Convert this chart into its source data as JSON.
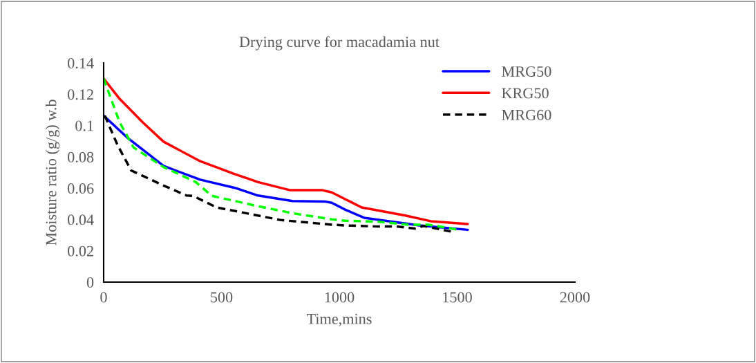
{
  "chart_data": {
    "type": "line",
    "title": "Drying curve for macadamia nut",
    "xlabel": "Time,mins",
    "ylabel": "Moisture ratio (g/g) w.b",
    "xlim": [
      0,
      2000
    ],
    "xticks": [
      0,
      500,
      1000,
      1500,
      2000
    ],
    "ylim": [
      0,
      0.14
    ],
    "yticks": [
      0,
      0.02,
      0.04,
      0.06,
      0.08,
      0.1,
      0.12,
      0.14
    ],
    "grid": false,
    "legend": "top right",
    "marker": "none",
    "series": [
      {
        "name": "MRG50",
        "color": "#0000ff",
        "line_style": "solid",
        "x": [
          0,
          98,
          254,
          410,
          557,
          655,
          801,
          938,
          968,
          1026,
          1105,
          1339,
          1545
        ],
        "values": [
          0.1063,
          0.0926,
          0.0742,
          0.0654,
          0.0602,
          0.0553,
          0.0518,
          0.0515,
          0.0507,
          0.0462,
          0.0411,
          0.0362,
          0.0334
        ]
      },
      {
        "name": "KRG50",
        "color": "#ff0000",
        "line_style": "solid",
        "x": [
          0,
          68,
          166,
          254,
          410,
          557,
          655,
          792,
          929,
          968,
          1026,
          1095,
          1281,
          1388,
          1545
        ],
        "values": [
          0.13,
          0.117,
          0.102,
          0.0897,
          0.0772,
          0.069,
          0.0639,
          0.0587,
          0.0587,
          0.0573,
          0.0529,
          0.0477,
          0.0425,
          0.0389,
          0.0371
        ]
      },
      {
        "name": "MRG60",
        "color": "#000000",
        "line_style": "dashed",
        "x": [
          5,
          59,
          117,
          254,
          352,
          381,
          479,
          753,
          968,
          1026,
          1163,
          1241,
          1320,
          1359,
          1476
        ],
        "values": [
          0.1063,
          0.0875,
          0.0713,
          0.0617,
          0.0553,
          0.055,
          0.0477,
          0.0396,
          0.0367,
          0.0362,
          0.0355,
          0.0356,
          0.0342,
          0.0359,
          0.0322
        ]
      },
      {
        "color": "#00ff00",
        "line_style": "dashed",
        "x": [
          0,
          68,
          127,
          254,
          391,
          459,
          655,
          801,
          968,
          1026,
          1163,
          1290,
          1378,
          1496
        ],
        "values": [
          0.13,
          0.102,
          0.086,
          0.0735,
          0.0639,
          0.0551,
          0.0485,
          0.044,
          0.0401,
          0.0392,
          0.0386,
          0.0367,
          0.0367,
          0.0337
        ]
      }
    ]
  }
}
